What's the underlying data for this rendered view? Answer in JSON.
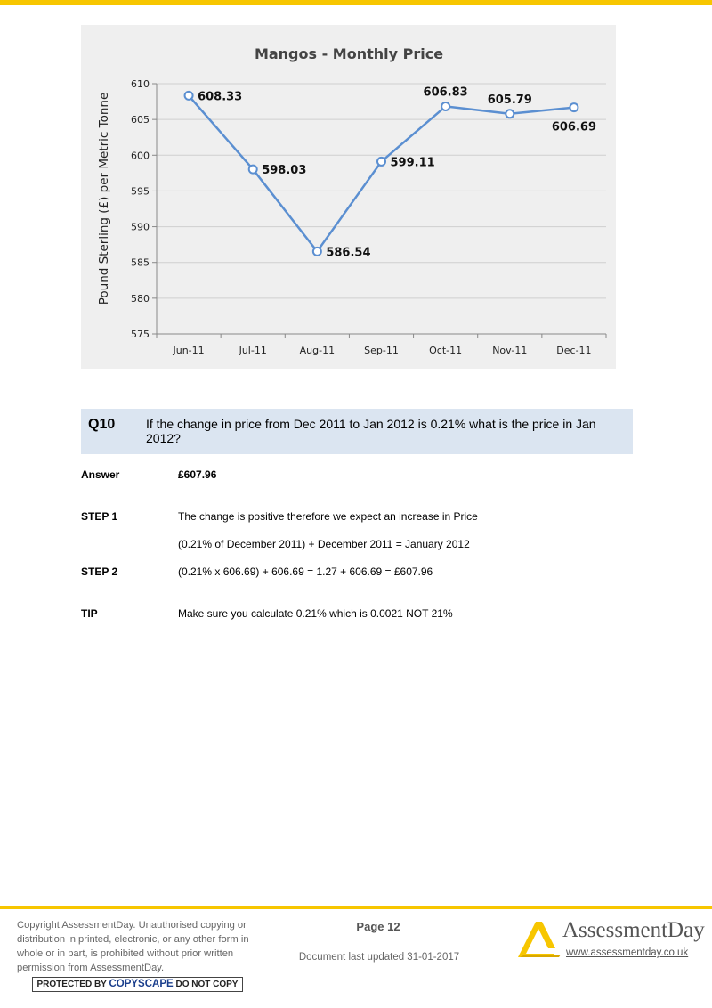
{
  "chart_data": {
    "type": "line",
    "title": "Mangos - Monthly Price",
    "ylabel": "Pound Sterling (£) per Metric Tonne",
    "xlabel": "",
    "categories": [
      "Jun-11",
      "Jul-11",
      "Aug-11",
      "Sep-11",
      "Oct-11",
      "Nov-11",
      "Dec-11"
    ],
    "series": [
      {
        "values": [
          608.33,
          598.03,
          586.54,
          599.11,
          606.83,
          605.79,
          606.69
        ]
      }
    ],
    "data_labels": [
      "608.33",
      "598.03",
      "586.54",
      "599.11",
      "606.83",
      "605.79",
      "606.69"
    ],
    "ylim": [
      575,
      610
    ],
    "yticks": [
      575,
      580,
      585,
      590,
      595,
      600,
      605,
      610
    ],
    "grid": true,
    "line_color": "#5b8fd1"
  },
  "question": {
    "number": "Q10",
    "text": "If the change in price from Dec 2011 to Jan 2012 is 0.21% what is the price in Jan 2012?"
  },
  "answer": {
    "label": "Answer",
    "value": "£607.96"
  },
  "step1": {
    "label": "STEP 1",
    "line1": "The change is positive therefore we expect an increase in Price",
    "line2": "(0.21% of December 2011) + December 2011 = January 2012"
  },
  "step2": {
    "label": "STEP 2",
    "text": "(0.21% x 606.69) + 606.69 = 1.27 + 606.69 = £607.96"
  },
  "tip": {
    "label": "TIP",
    "text": "Make sure you calculate 0.21% which is 0.0021 NOT 21%"
  },
  "footer": {
    "copyright": "Copyright AssessmentDay. Unauthorised copying or distribution in printed, electronic, or any other form in whole or in part, is prohibited without prior written permission from AssessmentDay.",
    "copyscape_pre": "PROTECTED BY",
    "copyscape_brand": "COPYSCAPE",
    "copyscape_post": "DO NOT COPY",
    "page": "Page 12",
    "updated": "Document last updated 31-01-2017",
    "brand": "AssessmentDay",
    "url": "www.assessmentday.co.uk",
    "brand_color": "#f7c600"
  }
}
